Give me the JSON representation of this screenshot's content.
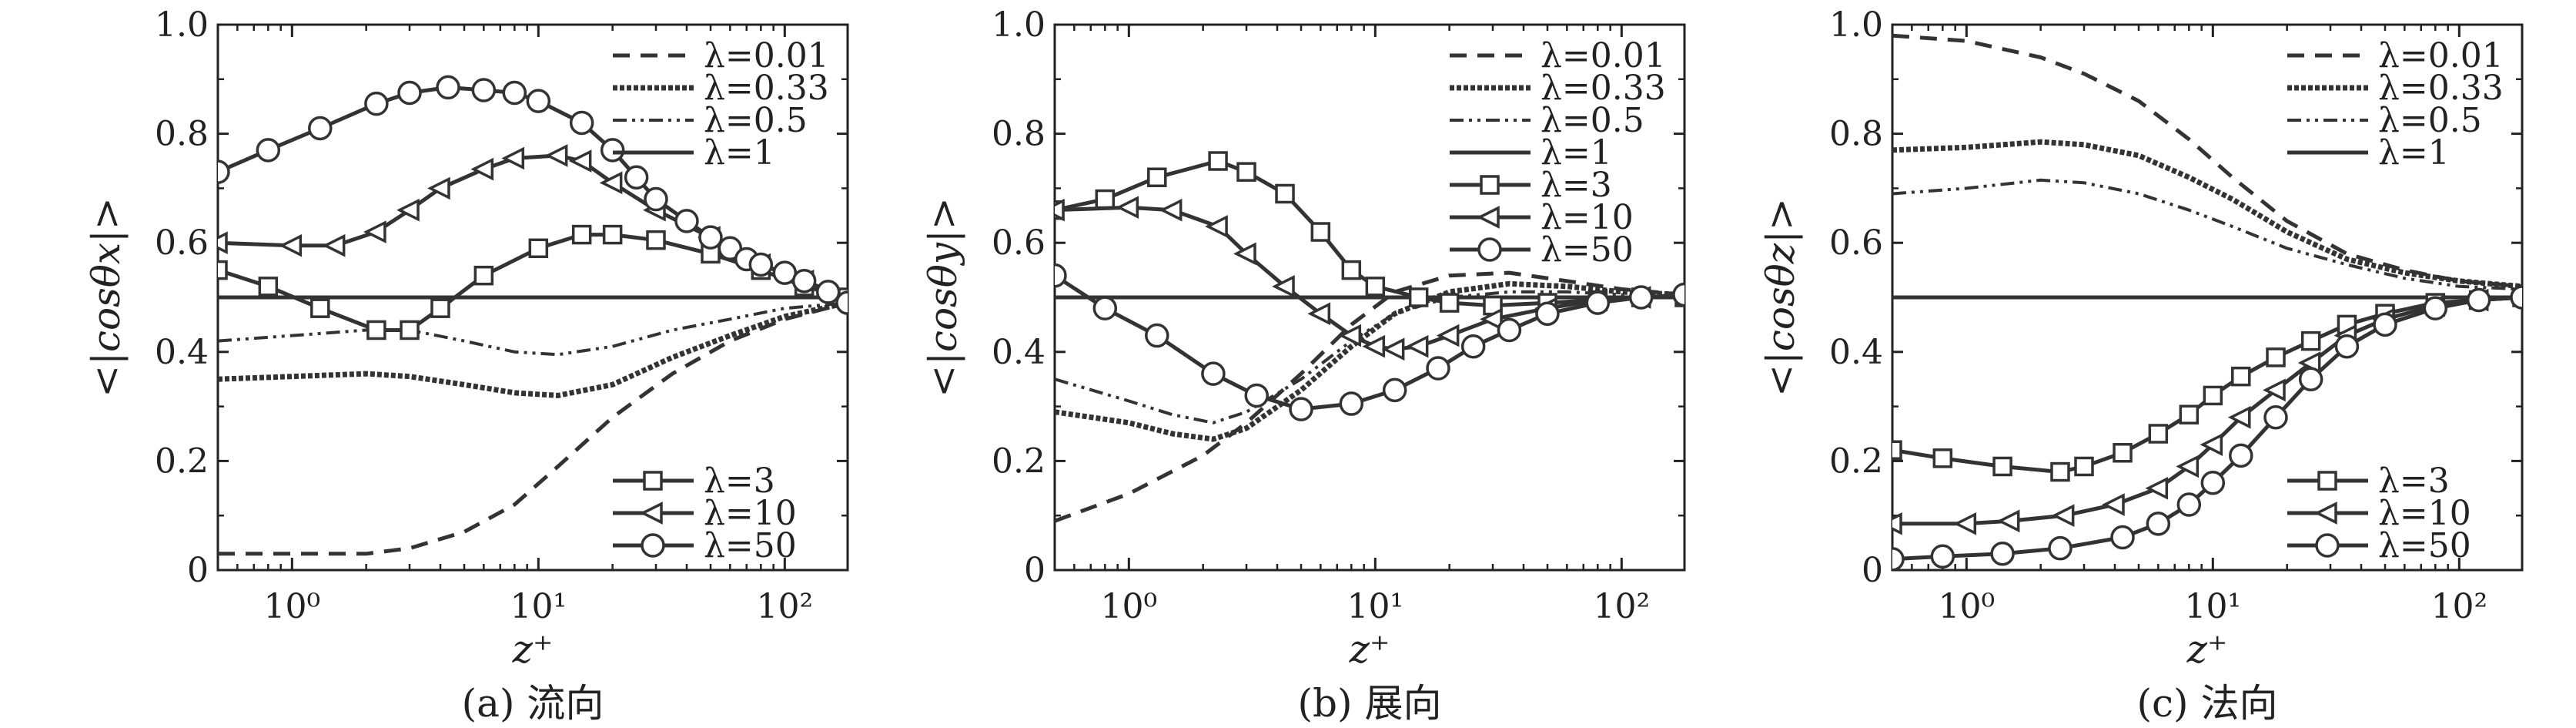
{
  "chart_data": [
    {
      "type": "line",
      "caption": "(a) 流向",
      "xlabel": "z⁺",
      "ylabel": "<|cosθx|>",
      "xscale": "log",
      "xlim": [
        0.5,
        180
      ],
      "ylim": [
        0,
        1.0
      ],
      "yticks": [
        "0",
        "0.2",
        "0.4",
        "0.6",
        "0.8",
        "1.0"
      ],
      "xticks": [
        "10⁰",
        "10¹",
        "10²"
      ],
      "legend": [
        {
          "placement": "top-right",
          "entries": [
            "λ=0.01",
            "λ=0.33",
            "λ=0.5",
            "λ=1"
          ]
        },
        {
          "placement": "bottom-right",
          "entries": [
            "λ=3",
            "λ=10",
            "λ=50"
          ]
        }
      ],
      "series": [
        {
          "name": "λ=0.01",
          "style": "dash",
          "x": [
            0.5,
            1,
            2,
            3,
            5,
            8,
            12,
            20,
            35,
            60,
            100,
            180
          ],
          "y": [
            0.03,
            0.03,
            0.03,
            0.04,
            0.07,
            0.12,
            0.19,
            0.28,
            0.36,
            0.42,
            0.46,
            0.49
          ]
        },
        {
          "name": "λ=0.33",
          "style": "dotted-bold",
          "x": [
            0.5,
            1,
            2,
            3,
            5,
            8,
            12,
            20,
            35,
            60,
            100,
            180
          ],
          "y": [
            0.35,
            0.355,
            0.36,
            0.355,
            0.34,
            0.325,
            0.32,
            0.34,
            0.39,
            0.43,
            0.465,
            0.49
          ]
        },
        {
          "name": "λ=0.5",
          "style": "dashdotdot",
          "x": [
            0.5,
            1,
            2,
            3,
            5,
            8,
            12,
            20,
            35,
            60,
            100,
            180
          ],
          "y": [
            0.42,
            0.43,
            0.44,
            0.44,
            0.42,
            0.4,
            0.395,
            0.41,
            0.44,
            0.46,
            0.48,
            0.49
          ]
        },
        {
          "name": "λ=1",
          "style": "solid",
          "x": [
            0.5,
            1,
            2,
            5,
            10,
            20,
            50,
            100,
            180
          ],
          "y": [
            0.5,
            0.5,
            0.5,
            0.5,
            0.5,
            0.5,
            0.5,
            0.5,
            0.5
          ]
        },
        {
          "name": "λ=3",
          "style": "solid",
          "marker": "square",
          "x": [
            0.5,
            0.8,
            1.3,
            2.2,
            3,
            4,
            6,
            10,
            15,
            20,
            30,
            50,
            80,
            120,
            180
          ],
          "y": [
            0.55,
            0.52,
            0.48,
            0.44,
            0.44,
            0.48,
            0.54,
            0.59,
            0.615,
            0.615,
            0.605,
            0.58,
            0.55,
            0.52,
            0.5
          ]
        },
        {
          "name": "λ=10",
          "style": "solid",
          "marker": "triangle-left",
          "x": [
            0.5,
            1,
            1.5,
            2.2,
            3,
            4,
            6,
            8,
            12,
            15,
            20,
            30,
            50,
            80,
            120,
            180
          ],
          "y": [
            0.6,
            0.595,
            0.595,
            0.62,
            0.66,
            0.7,
            0.735,
            0.755,
            0.76,
            0.75,
            0.71,
            0.66,
            0.61,
            0.56,
            0.53,
            0.5
          ]
        },
        {
          "name": "λ=50",
          "style": "solid",
          "marker": "circle",
          "x": [
            0.5,
            0.8,
            1.3,
            2.2,
            3,
            4.3,
            6,
            8,
            10,
            15,
            20,
            25,
            30,
            40,
            50,
            60,
            70,
            80,
            100,
            120,
            150,
            180
          ],
          "y": [
            0.73,
            0.77,
            0.81,
            0.855,
            0.875,
            0.885,
            0.88,
            0.875,
            0.86,
            0.82,
            0.77,
            0.72,
            0.68,
            0.64,
            0.61,
            0.59,
            0.57,
            0.56,
            0.545,
            0.53,
            0.51,
            0.49
          ]
        }
      ]
    },
    {
      "type": "line",
      "caption": "(b) 展向",
      "xlabel": "z⁺",
      "ylabel": "<|cosθy|>",
      "xscale": "log",
      "xlim": [
        0.5,
        180
      ],
      "ylim": [
        0,
        1.0
      ],
      "yticks": [
        "0",
        "0.2",
        "0.4",
        "0.6",
        "0.8",
        "1.0"
      ],
      "xticks": [
        "10⁰",
        "10¹",
        "10²"
      ],
      "legend": [
        {
          "placement": "top-right",
          "entries": [
            "λ=0.01",
            "λ=0.33",
            "λ=0.5",
            "λ=1",
            "λ=3",
            "λ=10",
            "λ=50"
          ]
        }
      ],
      "series": [
        {
          "name": "λ=0.01",
          "style": "dash",
          "x": [
            0.5,
            1,
            2,
            3,
            5,
            8,
            12,
            20,
            35,
            60,
            100,
            180
          ],
          "y": [
            0.09,
            0.14,
            0.21,
            0.27,
            0.36,
            0.45,
            0.51,
            0.54,
            0.545,
            0.53,
            0.515,
            0.505
          ]
        },
        {
          "name": "λ=0.33",
          "style": "dotted-bold",
          "x": [
            0.5,
            1,
            1.5,
            2.2,
            3,
            5,
            8,
            12,
            20,
            35,
            60,
            100,
            180
          ],
          "y": [
            0.29,
            0.27,
            0.25,
            0.24,
            0.26,
            0.33,
            0.41,
            0.47,
            0.51,
            0.525,
            0.52,
            0.51,
            0.505
          ]
        },
        {
          "name": "λ=0.5",
          "style": "dashdotdot",
          "x": [
            0.5,
            1,
            1.5,
            2.2,
            3,
            5,
            8,
            12,
            20,
            35,
            60,
            100,
            180
          ],
          "y": [
            0.35,
            0.31,
            0.285,
            0.27,
            0.29,
            0.35,
            0.42,
            0.47,
            0.5,
            0.51,
            0.51,
            0.505,
            0.5
          ]
        },
        {
          "name": "λ=1",
          "style": "solid",
          "x": [
            0.5,
            1,
            2,
            5,
            10,
            20,
            50,
            100,
            180
          ],
          "y": [
            0.5,
            0.5,
            0.5,
            0.5,
            0.5,
            0.5,
            0.5,
            0.5,
            0.5
          ]
        },
        {
          "name": "λ=3",
          "style": "solid",
          "marker": "square",
          "x": [
            0.5,
            0.8,
            1.3,
            2.3,
            3,
            4.3,
            6,
            8,
            10,
            15,
            20,
            30,
            50,
            80,
            120,
            180
          ],
          "y": [
            0.66,
            0.68,
            0.72,
            0.75,
            0.73,
            0.69,
            0.62,
            0.55,
            0.52,
            0.5,
            0.49,
            0.485,
            0.49,
            0.495,
            0.5,
            0.5
          ]
        },
        {
          "name": "λ=10",
          "style": "solid",
          "marker": "triangle-left",
          "x": [
            0.5,
            1,
            1.5,
            2.3,
            3,
            4.3,
            6,
            8,
            10,
            12,
            15,
            20,
            30,
            50,
            80,
            120,
            180
          ],
          "y": [
            0.66,
            0.665,
            0.66,
            0.63,
            0.58,
            0.52,
            0.47,
            0.43,
            0.41,
            0.405,
            0.41,
            0.43,
            0.46,
            0.48,
            0.495,
            0.5,
            0.5
          ]
        },
        {
          "name": "λ=50",
          "style": "solid",
          "marker": "circle",
          "x": [
            0.5,
            0.8,
            1.3,
            2.2,
            3.3,
            5,
            8,
            12,
            18,
            25,
            35,
            50,
            80,
            120,
            180
          ],
          "y": [
            0.54,
            0.48,
            0.43,
            0.36,
            0.32,
            0.295,
            0.305,
            0.33,
            0.37,
            0.41,
            0.44,
            0.47,
            0.49,
            0.5,
            0.505
          ]
        }
      ]
    },
    {
      "type": "line",
      "caption": "(c) 法向",
      "xlabel": "z⁺",
      "ylabel": "<|cosθz|>",
      "xscale": "log",
      "xlim": [
        0.5,
        180
      ],
      "ylim": [
        0,
        1.0
      ],
      "yticks": [
        "0",
        "0.2",
        "0.4",
        "0.6",
        "0.8",
        "1.0"
      ],
      "xticks": [
        "10⁰",
        "10¹",
        "10²"
      ],
      "legend": [
        {
          "placement": "top-right",
          "entries": [
            "λ=0.01",
            "λ=0.33",
            "λ=0.5",
            "λ=1"
          ]
        },
        {
          "placement": "bottom-right",
          "entries": [
            "λ=3",
            "λ=10",
            "λ=50"
          ]
        }
      ],
      "series": [
        {
          "name": "λ=0.01",
          "style": "dash",
          "x": [
            0.5,
            1,
            2,
            3,
            5,
            8,
            12,
            20,
            35,
            60,
            100,
            180
          ],
          "y": [
            0.98,
            0.97,
            0.94,
            0.91,
            0.86,
            0.79,
            0.72,
            0.64,
            0.58,
            0.55,
            0.53,
            0.52
          ]
        },
        {
          "name": "λ=0.33",
          "style": "dotted-bold",
          "x": [
            0.5,
            1,
            2,
            3,
            5,
            8,
            12,
            20,
            35,
            60,
            100,
            180
          ],
          "y": [
            0.77,
            0.775,
            0.785,
            0.78,
            0.76,
            0.72,
            0.68,
            0.62,
            0.57,
            0.545,
            0.53,
            0.52
          ]
        },
        {
          "name": "λ=0.5",
          "style": "dashdotdot",
          "x": [
            0.5,
            1,
            2,
            3,
            5,
            8,
            12,
            20,
            35,
            60,
            100,
            180
          ],
          "y": [
            0.69,
            0.7,
            0.715,
            0.71,
            0.69,
            0.66,
            0.63,
            0.59,
            0.56,
            0.535,
            0.52,
            0.515
          ]
        },
        {
          "name": "λ=1",
          "style": "solid",
          "x": [
            0.5,
            1,
            2,
            5,
            10,
            20,
            50,
            100,
            180
          ],
          "y": [
            0.5,
            0.5,
            0.5,
            0.5,
            0.5,
            0.5,
            0.5,
            0.5,
            0.5
          ]
        },
        {
          "name": "λ=3",
          "style": "solid",
          "marker": "square",
          "x": [
            0.5,
            0.8,
            1.4,
            2.4,
            3,
            4.3,
            6,
            8,
            10,
            13,
            18,
            25,
            35,
            50,
            80,
            120,
            180
          ],
          "y": [
            0.22,
            0.205,
            0.19,
            0.18,
            0.19,
            0.215,
            0.25,
            0.285,
            0.32,
            0.355,
            0.39,
            0.42,
            0.45,
            0.47,
            0.49,
            0.495,
            0.5
          ]
        },
        {
          "name": "λ=10",
          "style": "solid",
          "marker": "triangle-left",
          "x": [
            0.5,
            1,
            1.5,
            2.5,
            4,
            6,
            8,
            10,
            13,
            18,
            25,
            35,
            50,
            80,
            120,
            180
          ],
          "y": [
            0.085,
            0.085,
            0.09,
            0.1,
            0.12,
            0.15,
            0.19,
            0.23,
            0.28,
            0.33,
            0.38,
            0.43,
            0.46,
            0.485,
            0.495,
            0.5
          ]
        },
        {
          "name": "λ=50",
          "style": "solid",
          "marker": "circle",
          "x": [
            0.5,
            0.8,
            1.4,
            2.4,
            4.3,
            6,
            8,
            10,
            13,
            18,
            25,
            35,
            50,
            80,
            120,
            180
          ],
          "y": [
            0.02,
            0.025,
            0.03,
            0.04,
            0.06,
            0.085,
            0.12,
            0.16,
            0.21,
            0.28,
            0.35,
            0.41,
            0.45,
            0.48,
            0.495,
            0.5
          ]
        }
      ]
    }
  ]
}
